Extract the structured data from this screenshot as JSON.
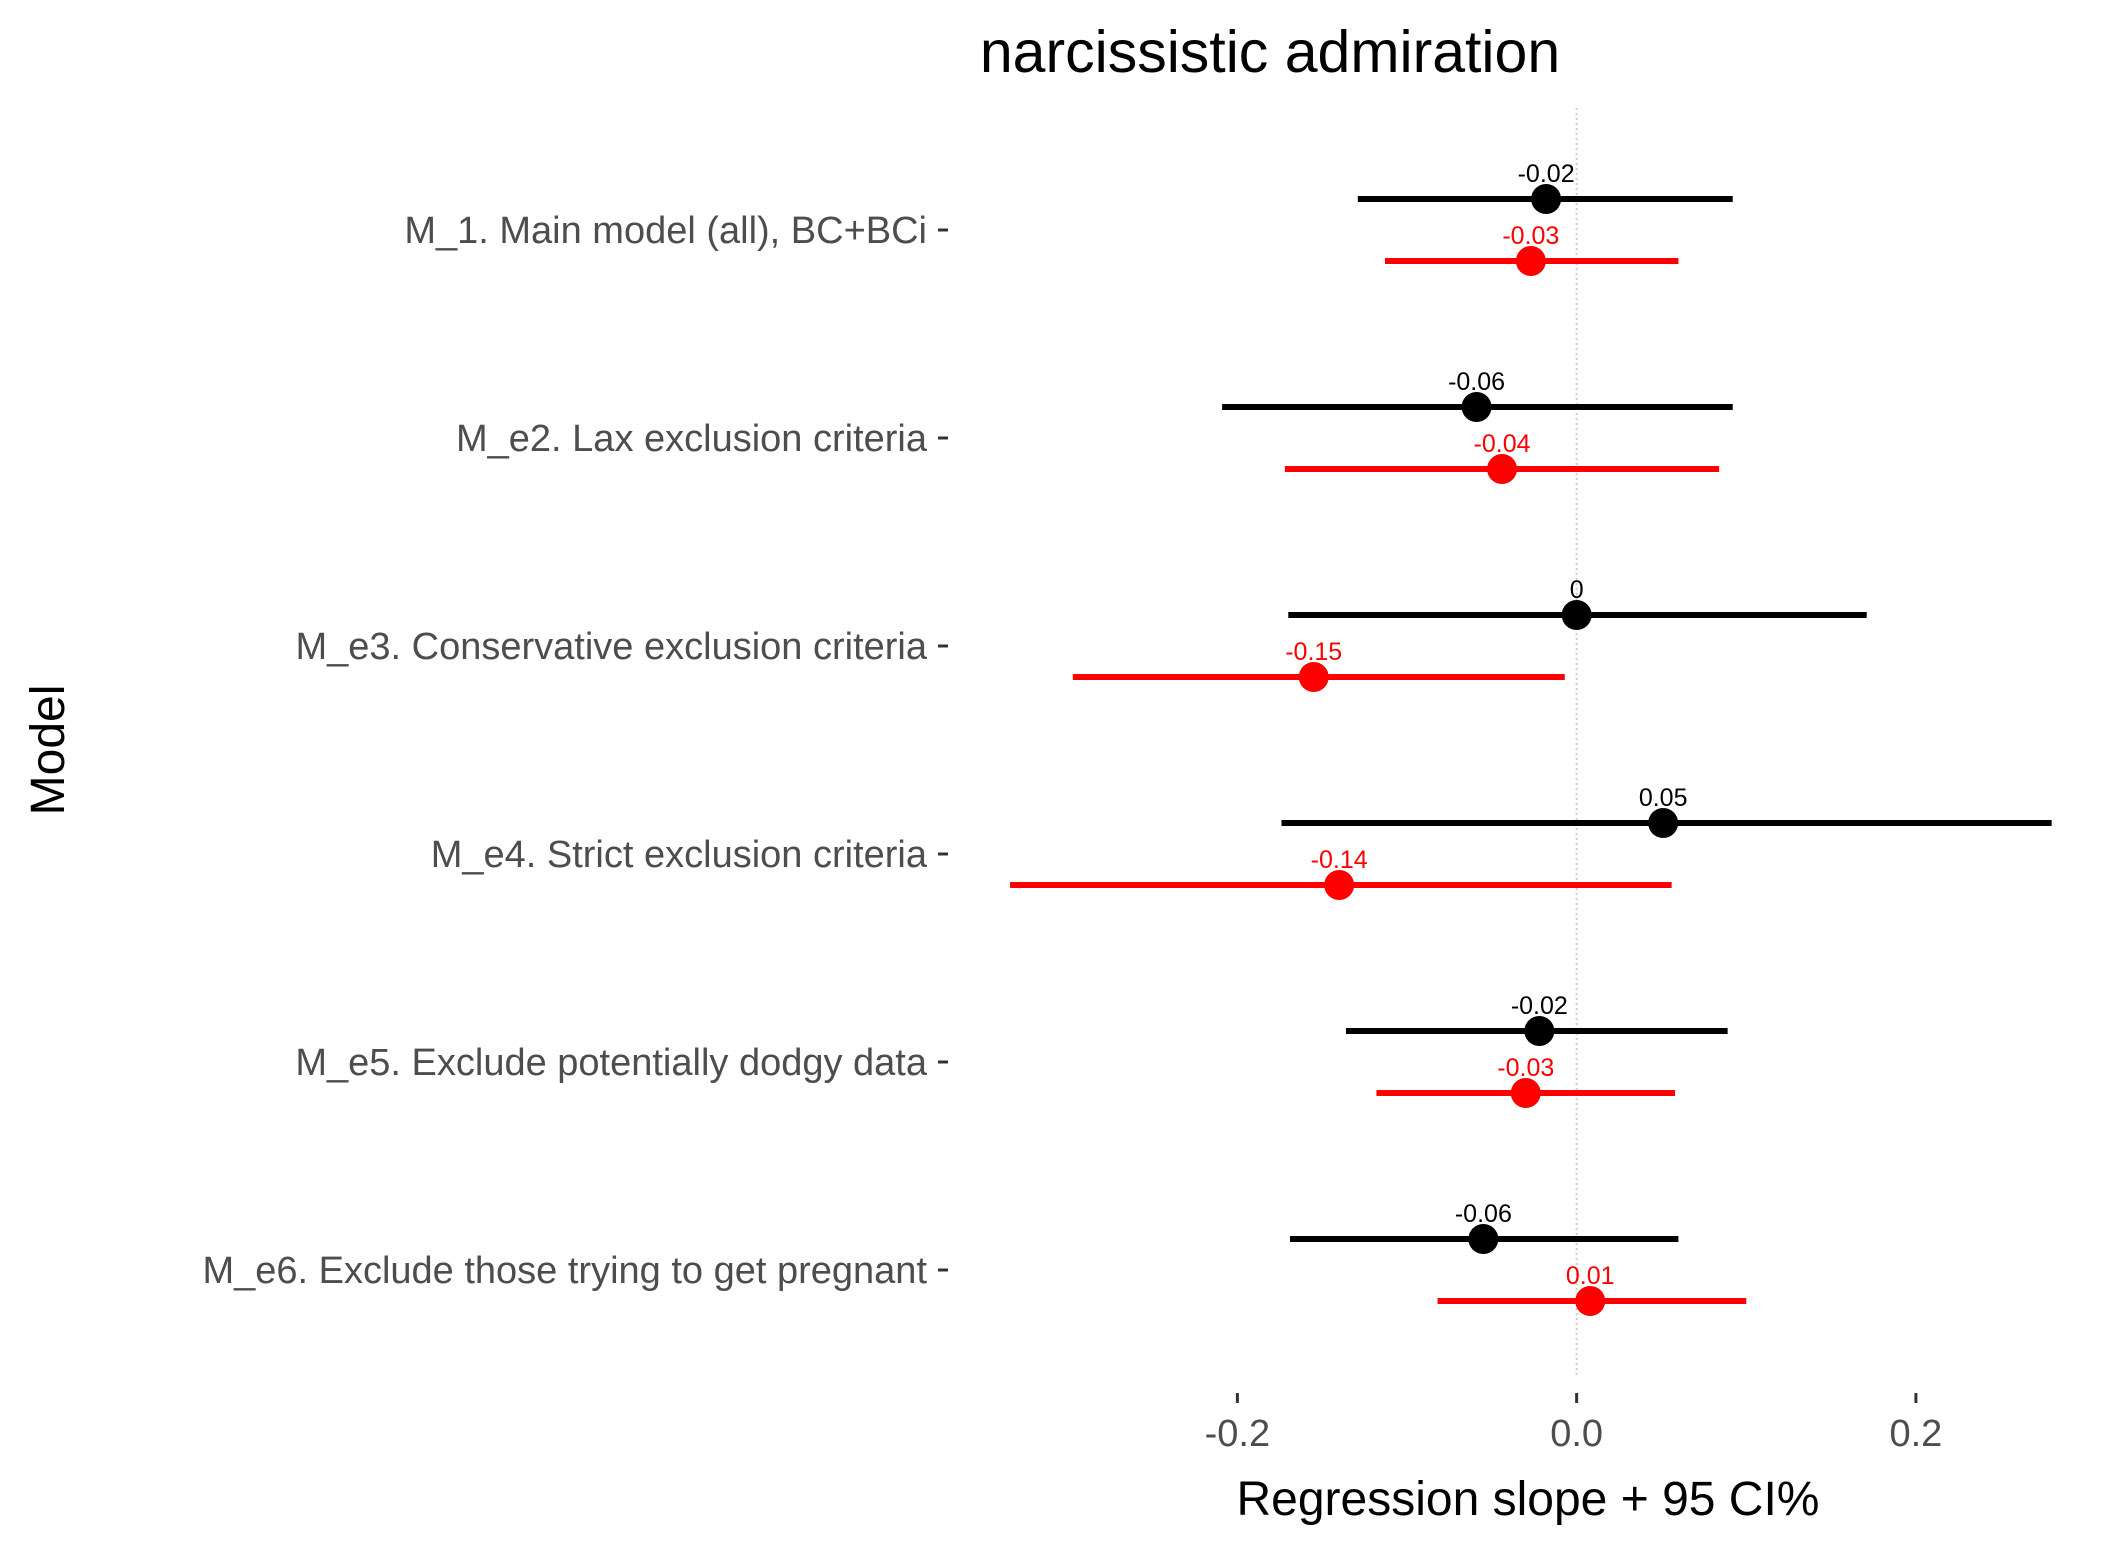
{
  "chart_data": {
    "type": "forest",
    "title": "narcissistic admiration",
    "xlabel": "Regression slope + 95 CI%",
    "ylabel": "Model",
    "xlim": [
      -0.337,
      0.282
    ],
    "xticks": [
      -0.2,
      0.0,
      0.2
    ],
    "xtick_labels": [
      "-0.2",
      "0.0",
      "0.2"
    ],
    "reference_line": 0,
    "grid": false,
    "legend": "none",
    "categories": [
      "M_1. Main model (all), BC+BCi",
      "M_e2. Lax exclusion criteria",
      "M_e3. Conservative exclusion criteria",
      "M_e4. Strict exclusion criteria",
      "M_e5. Exclude potentially dodgy data",
      "M_e6. Exclude those trying to get pregnant"
    ],
    "series": [
      {
        "color": "#000000",
        "estimates": [
          -0.018,
          -0.059,
          0.0,
          0.051,
          -0.022,
          -0.055
        ],
        "lower": [
          -0.129,
          -0.209,
          -0.17,
          -0.174,
          -0.136,
          -0.169
        ],
        "upper": [
          0.092,
          0.092,
          0.171,
          0.28,
          0.089,
          0.06
        ],
        "labels": [
          "-0.02",
          "-0.06",
          "0",
          "0.05",
          "-0.02",
          "-0.06"
        ]
      },
      {
        "color": "#ff0000",
        "estimates": [
          -0.027,
          -0.044,
          -0.155,
          -0.14,
          -0.03,
          0.008
        ],
        "lower": [
          -0.113,
          -0.172,
          -0.297,
          -0.334,
          -0.118,
          -0.082
        ],
        "upper": [
          0.06,
          0.084,
          -0.007,
          0.056,
          0.058,
          0.1
        ],
        "labels": [
          "-0.03",
          "-0.04",
          "-0.15",
          "-0.14",
          "-0.03",
          "0.01"
        ]
      }
    ]
  }
}
